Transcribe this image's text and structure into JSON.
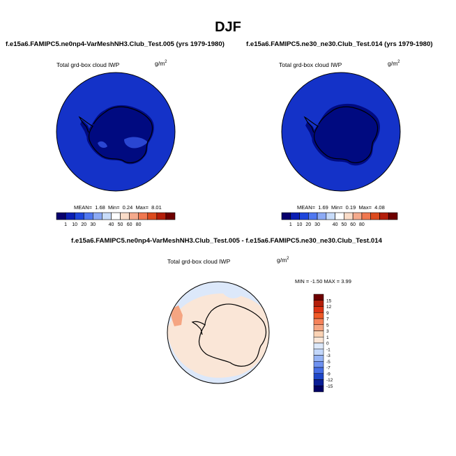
{
  "season": "DJF",
  "panels": [
    {
      "title": "f.e15a6.FAMIPC5.ne0np4-VarMeshNH3.Club_Test.005 (yrs 1979-1980)",
      "field": "Total grd-box cloud IWP",
      "units": "g/m",
      "units_sup": "2",
      "mean_label": "MEAN=",
      "mean": "1.68",
      "min_label": "Min=",
      "min": "0.24",
      "max_label": "Max=",
      "max": "8.01"
    },
    {
      "title": "f.e15a6.FAMIPC5.ne30_ne30.Club_Test.014 (yrs 1979-1980)",
      "field": "Total grd-box cloud IWP",
      "units": "g/m",
      "units_sup": "2",
      "mean_label": "MEAN=",
      "mean": "1.69",
      "min_label": "Min=",
      "min": "0.19",
      "max_label": "Max=",
      "max": "4.08"
    }
  ],
  "diff": {
    "title": "f.e15a6.FAMIPC5.ne0np4-VarMeshNH3.Club_Test.005 - f.e15a6.FAMIPC5.ne30_ne30.Club_Test.014",
    "field": "Total grd-box cloud IWP",
    "units": "g/m",
    "units_sup": "2",
    "minmax": "MIN =  -1.50 MAX =   3.99"
  },
  "colorbar_top": {
    "labels": [
      "1",
      "10",
      "20",
      "30",
      "40",
      "50",
      "60",
      "80"
    ],
    "colors": [
      "#08006e",
      "#0a1eb4",
      "#1e46dc",
      "#5078f0",
      "#8caaf5",
      "#c8dcfa",
      "#ffffff",
      "#fadcc8",
      "#f5aa8c",
      "#f07850",
      "#dc4b1e",
      "#b41e0a",
      "#6e0000"
    ]
  },
  "colorbar_diff": {
    "labels": [
      "15",
      "12",
      "9",
      "7",
      "5",
      "3",
      "1",
      "0",
      "-1",
      "-3",
      "-5",
      "-7",
      "-9",
      "-12",
      "-15"
    ],
    "colors": [
      "#6e0000",
      "#b41e0a",
      "#dc3214",
      "#f05a28",
      "#f5825a",
      "#f5a582",
      "#fad2b4",
      "#fae6d7",
      "#dce8fa",
      "#c3d7fa",
      "#96b4f5",
      "#6e91f0",
      "#466ee6",
      "#1e46c8",
      "#0a1e96",
      "#000064"
    ]
  },
  "map_colors": {
    "ocean_top": "#1432c8",
    "ice_top": "#000a80",
    "diff_pos": "#fae6d7",
    "diff_neg": "#dce8fa",
    "diff_strong": "#f5a582"
  }
}
